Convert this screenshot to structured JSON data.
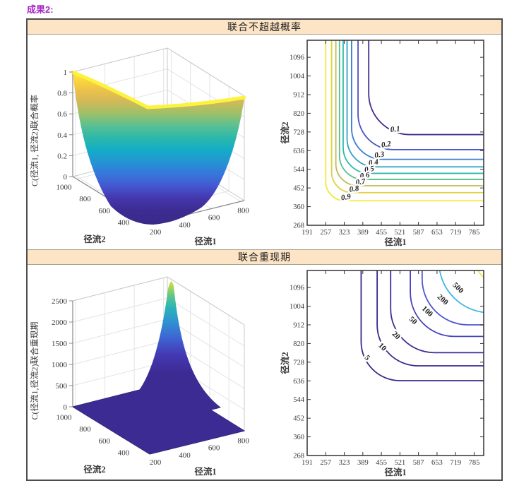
{
  "page": {
    "header_label": "成果2:"
  },
  "panels": [
    {
      "title": "联合不超越概率"
    },
    {
      "title": "联合重现期"
    }
  ],
  "chart_data": [
    {
      "type": "surface",
      "panel": 0,
      "shape": "valley",
      "zlabel": "C(径流1, 径流2)联合概率",
      "xlabel": "径流1",
      "ylabel": "径流2",
      "xticks": [
        "200",
        "400",
        "600",
        "800"
      ],
      "yticks": [
        "400",
        "600",
        "800",
        "1000"
      ],
      "zticks": [
        "0",
        "0.2",
        "0.4",
        "0.6",
        "0.8",
        "1"
      ],
      "zlim": [
        0,
        1
      ],
      "colormap": "parula",
      "description": "Copula joint non-exceedance probability surface: equals 1 at the (min 径流1, max 径流2) and (max 径流1, min 径流2) corners, dips to a yellow V-shaped saddle ridge (~0.55) toward the far corner, and is ~0 (dark indigo floor) over the low-low region."
    },
    {
      "type": "contour",
      "panel": 0,
      "xlabel": "径流1",
      "ylabel": "径流2",
      "xticks": [
        191,
        257,
        323,
        389,
        455,
        521,
        587,
        653,
        719,
        785
      ],
      "yticks": [
        268,
        360,
        452,
        544,
        636,
        728,
        820,
        912,
        1004,
        1096
      ],
      "xrange": [
        191,
        819
      ],
      "yrange": [
        268,
        1180
      ],
      "italic_labels": true,
      "levels": [
        {
          "value": 0.1,
          "color": "#452d8f",
          "x_asymptote": 410,
          "y_asymptote": 715,
          "bend": 58,
          "label_x": 505,
          "label_y": 730,
          "label_rot": -5
        },
        {
          "value": 0.2,
          "color": "#4c52c6",
          "x_asymptote": 372,
          "y_asymptote": 641,
          "bend": 50,
          "label_x": 473,
          "label_y": 655,
          "label_rot": -8
        },
        {
          "value": 0.3,
          "color": "#3c7dd2",
          "x_asymptote": 349,
          "y_asymptote": 593,
          "bend": 44,
          "label_x": 449,
          "label_y": 604,
          "label_rot": -8
        },
        {
          "value": 0.4,
          "color": "#32a0c8",
          "x_asymptote": 333,
          "y_asymptote": 556,
          "bend": 40,
          "label_x": 428,
          "label_y": 566,
          "label_rot": -8
        },
        {
          "value": 0.5,
          "color": "#30b8a9",
          "x_asymptote": 319,
          "y_asymptote": 524,
          "bend": 37,
          "label_x": 413,
          "label_y": 533,
          "label_rot": -8
        },
        {
          "value": 0.6,
          "color": "#5abf8e",
          "x_asymptote": 306,
          "y_asymptote": 494,
          "bend": 34,
          "label_x": 397,
          "label_y": 502,
          "label_rot": -8
        },
        {
          "value": 0.7,
          "color": "#bcbd53",
          "x_asymptote": 293,
          "y_asymptote": 463,
          "bend": 31,
          "label_x": 382,
          "label_y": 470,
          "label_rot": -8
        },
        {
          "value": 0.8,
          "color": "#e0d13d",
          "x_asymptote": 278,
          "y_asymptote": 429,
          "bend": 29,
          "label_x": 359,
          "label_y": 436,
          "label_rot": -8
        },
        {
          "value": 0.9,
          "color": "#f3e93a",
          "x_asymptote": 257,
          "y_asymptote": 389,
          "bend": 27,
          "label_x": 330,
          "label_y": 395,
          "label_rot": -8
        }
      ]
    },
    {
      "type": "surface",
      "panel": 1,
      "shape": "spike",
      "zlabel": "C(径流1,径流2)联合重现期",
      "xlabel": "径流1",
      "ylabel": "径流2",
      "xticks": [
        "200",
        "400",
        "600",
        "800"
      ],
      "yticks": [
        "400",
        "600",
        "800",
        "1000"
      ],
      "zticks": [
        "0",
        "500",
        "1000",
        "1500",
        "2000",
        "2500"
      ],
      "zlim": [
        0,
        2500
      ],
      "colormap": "parula",
      "description": "Joint return period surface: flat near 0 (dark indigo) over most of the domain with a sharp spike rising above 2500 (yellow tip) at the (max 径流1, max 径流2) corner."
    },
    {
      "type": "contour",
      "panel": 1,
      "xlabel": "径流1",
      "ylabel": "径流2",
      "xticks": [
        191,
        257,
        323,
        389,
        455,
        521,
        587,
        653,
        719,
        785
      ],
      "yticks": [
        268,
        360,
        452,
        544,
        636,
        728,
        820,
        912,
        1004,
        1096
      ],
      "xrange": [
        191,
        819
      ],
      "yrange": [
        268,
        1180
      ],
      "italic_labels": false,
      "levels": [
        {
          "value": 5,
          "color": "#3a2a8c",
          "x_asymptote": 383,
          "y_asymptote": 637,
          "bend": 55,
          "label_x": 399,
          "label_y": 742,
          "label_rot": 45
        },
        {
          "value": 10,
          "color": "#3b2a8e",
          "x_asymptote": 440,
          "y_asymptote": 710,
          "bend": 58,
          "label_x": 453,
          "label_y": 795,
          "label_rot": 45
        },
        {
          "value": 20,
          "color": "#3f2c97",
          "x_asymptote": 488,
          "y_asymptote": 775,
          "bend": 62,
          "label_x": 502,
          "label_y": 852,
          "label_rot": 45
        },
        {
          "value": 50,
          "color": "#4a41bd",
          "x_asymptote": 558,
          "y_asymptote": 855,
          "bend": 62,
          "label_x": 562,
          "label_y": 925,
          "label_rot": 43
        },
        {
          "value": 100,
          "color": "#5157cd",
          "x_asymptote": 600,
          "y_asymptote": 912,
          "bend": 65,
          "label_x": 613,
          "label_y": 970,
          "label_rot": 42
        },
        {
          "value": 200,
          "color": "#41b6e3",
          "x_asymptote": 660,
          "y_asymptote": 972,
          "bend": 72,
          "label_x": 668,
          "label_y": 1028,
          "label_rot": 42
        },
        {
          "value": 500,
          "color": "#ece83e",
          "x_asymptote": 745,
          "y_asymptote": 1022,
          "bend": 110,
          "label_x": 722,
          "label_y": 1086,
          "label_rot": 45
        }
      ]
    }
  ]
}
